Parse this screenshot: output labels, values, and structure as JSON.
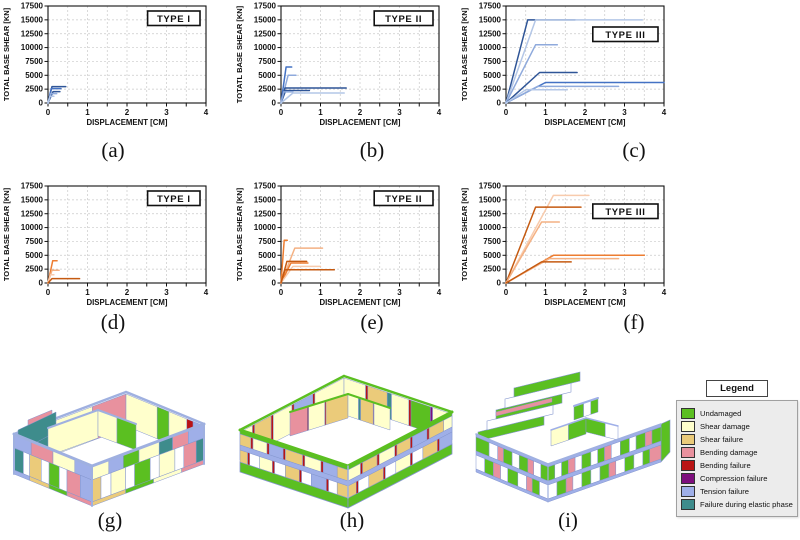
{
  "figure": {
    "captions": {
      "a": "(a)",
      "b": "(b)",
      "c": "(c)",
      "d": "(d)",
      "e": "(e)",
      "f": "(f)",
      "g": "(g)",
      "h": "(h)",
      "i": "(i)"
    }
  },
  "chart_data": [
    {
      "id": "a",
      "type": "line",
      "type_label": "TYPE I",
      "label_dy": 5,
      "xlabel": "DISPLACEMENT [CM]",
      "ylabel": "TOTAL BASE SHEAR [KN]",
      "xlim": [
        0,
        4
      ],
      "ylim": [
        0,
        17500
      ],
      "grid": true,
      "x_grid_step": 0.5,
      "y_grid_step": 2500,
      "xticks": [
        0,
        1,
        2,
        3,
        4
      ],
      "yticks": [
        0,
        2500,
        5000,
        7500,
        10000,
        12500,
        15000,
        17500
      ],
      "series": [
        {
          "color": "#2F5597",
          "points": [
            [
              0,
              0
            ],
            [
              0.1,
              2950
            ],
            [
              0.45,
              2950
            ]
          ]
        },
        {
          "color": "#4472C4",
          "points": [
            [
              0,
              0
            ],
            [
              0.08,
              2600
            ],
            [
              0.33,
              2600
            ]
          ]
        },
        {
          "color": "#2F5597",
          "points": [
            [
              0,
              0
            ],
            [
              0.13,
              2050
            ],
            [
              0.3,
              2050
            ]
          ]
        },
        {
          "color": "#8FAADC",
          "points": [
            [
              0,
              0
            ],
            [
              0.07,
              1700
            ],
            [
              0.22,
              1700
            ]
          ]
        },
        {
          "color": "#B4C7E7",
          "points": [
            [
              0,
              0
            ],
            [
              0.05,
              1200
            ],
            [
              0.15,
              1200
            ]
          ]
        }
      ]
    },
    {
      "id": "b",
      "type": "line",
      "type_label": "TYPE II",
      "label_dy": 5,
      "xlabel": "DISPLACEMENT [CM]",
      "ylabel": "TOTATL BASE SHEAR [KN]",
      "xlim": [
        0,
        4
      ],
      "ylim": [
        0,
        17500
      ],
      "grid": true,
      "x_grid_step": 0.5,
      "y_grid_step": 2500,
      "xticks": [
        0,
        1,
        2,
        3,
        4
      ],
      "yticks": [
        0,
        2500,
        5000,
        7500,
        10000,
        12500,
        15000,
        17500
      ],
      "series": [
        {
          "color": "#4472C4",
          "points": [
            [
              0,
              0
            ],
            [
              0.13,
              6500
            ],
            [
              0.27,
              6500
            ]
          ]
        },
        {
          "color": "#8FAADC",
          "points": [
            [
              0,
              0
            ],
            [
              0.18,
              5000
            ],
            [
              0.38,
              5000
            ]
          ]
        },
        {
          "color": "#2F5597",
          "points": [
            [
              0,
              0
            ],
            [
              0.1,
              2700
            ],
            [
              1.65,
              2700
            ]
          ]
        },
        {
          "color": "#2F5597",
          "points": [
            [
              0,
              0
            ],
            [
              0.12,
              2250
            ],
            [
              0.72,
              2250
            ]
          ]
        },
        {
          "color": "#8FAADC",
          "points": [
            [
              0,
              0
            ],
            [
              0.07,
              2000
            ],
            [
              0.3,
              2000
            ]
          ]
        },
        {
          "color": "#B4C7E7",
          "points": [
            [
              0,
              0
            ],
            [
              0.3,
              1800
            ],
            [
              1.6,
              1800
            ]
          ]
        }
      ]
    },
    {
      "id": "c",
      "type": "line",
      "type_label": "TYPE III",
      "label_dy": 21,
      "xlabel": "DISPLACEMENT [CM]",
      "ylabel": "TOTAL BASE SHEAR [KN]",
      "xlim": [
        0,
        4
      ],
      "ylim": [
        0,
        17500
      ],
      "grid": true,
      "x_grid_step": 0.5,
      "y_grid_step": 2500,
      "xticks": [
        0,
        1,
        2,
        3,
        4
      ],
      "yticks": [
        0,
        2500,
        5000,
        7500,
        10000,
        12500,
        15000,
        17500
      ],
      "series": [
        {
          "color": "#2F5597",
          "points": [
            [
              0,
              0
            ],
            [
              0.55,
              15000
            ],
            [
              1.75,
              15000
            ]
          ]
        },
        {
          "color": "#B4C7E7",
          "points": [
            [
              0,
              0
            ],
            [
              0.75,
              15000
            ],
            [
              3.45,
              15000
            ]
          ]
        },
        {
          "color": "#8FAADC",
          "points": [
            [
              0,
              0
            ],
            [
              0.75,
              10500
            ],
            [
              1.3,
              10500
            ]
          ]
        },
        {
          "color": "#2F5597",
          "points": [
            [
              0,
              0
            ],
            [
              0.85,
              5500
            ],
            [
              1.8,
              5500
            ]
          ]
        },
        {
          "color": "#4472C4",
          "points": [
            [
              0,
              0
            ],
            [
              1.0,
              3700
            ],
            [
              4.0,
              3700
            ]
          ]
        },
        {
          "color": "#8FAADC",
          "points": [
            [
              0,
              0
            ],
            [
              0.8,
              3000
            ],
            [
              2.85,
              3000
            ]
          ]
        },
        {
          "color": "#B4C7E7",
          "points": [
            [
              0,
              0
            ],
            [
              0.5,
              2400
            ],
            [
              1.55,
              2400
            ]
          ]
        }
      ]
    },
    {
      "id": "d",
      "type": "line",
      "type_label": "TYPE I",
      "label_dy": 5,
      "xlabel": "DISPLACEMENT [CM]",
      "ylabel": "TOTAL BASE SHEAR [KN]",
      "xlim": [
        0,
        4
      ],
      "ylim": [
        0,
        17500
      ],
      "grid": true,
      "x_grid_step": 0.5,
      "y_grid_step": 2500,
      "xticks": [
        0,
        1,
        2,
        3,
        4
      ],
      "yticks": [
        0,
        2500,
        5000,
        7500,
        10000,
        12500,
        15000,
        17500
      ],
      "series": [
        {
          "color": "#ED7D31",
          "points": [
            [
              0,
              0
            ],
            [
              0.12,
              4000
            ],
            [
              0.23,
              4000
            ]
          ]
        },
        {
          "color": "#F4B183",
          "points": [
            [
              0,
              0
            ],
            [
              0.1,
              2300
            ],
            [
              0.28,
              2300
            ]
          ]
        },
        {
          "color": "#F8CBAD",
          "points": [
            [
              0,
              0
            ],
            [
              0.06,
              1500
            ],
            [
              0.15,
              1500
            ]
          ]
        },
        {
          "color": "#C55A11",
          "points": [
            [
              0,
              0
            ],
            [
              0.1,
              800
            ],
            [
              0.8,
              800
            ]
          ]
        }
      ]
    },
    {
      "id": "e",
      "type": "line",
      "type_label": "TYPE II",
      "label_dy": 5,
      "xlabel": "DISPLACEMENT [CM]",
      "ylabel": "TOTAL BASE SHEAR [KN]",
      "xlim": [
        0,
        4
      ],
      "ylim": [
        0,
        17500
      ],
      "grid": true,
      "x_grid_step": 0.5,
      "y_grid_step": 2500,
      "xticks": [
        0,
        1,
        2,
        3,
        4
      ],
      "yticks": [
        0,
        2500,
        5000,
        7500,
        10000,
        12500,
        15000,
        17500
      ],
      "series": [
        {
          "color": "#ED7D31",
          "points": [
            [
              0,
              0
            ],
            [
              0.08,
              7700
            ],
            [
              0.16,
              7700
            ]
          ]
        },
        {
          "color": "#F4B183",
          "points": [
            [
              0,
              0
            ],
            [
              0.35,
              6300
            ],
            [
              1.05,
              6300
            ]
          ]
        },
        {
          "color": "#C55A11",
          "points": [
            [
              0,
              0
            ],
            [
              0.15,
              3900
            ],
            [
              0.65,
              3900
            ]
          ]
        },
        {
          "color": "#ED7D31",
          "points": [
            [
              0,
              0
            ],
            [
              0.25,
              3600
            ],
            [
              0.68,
              3600
            ]
          ]
        },
        {
          "color": "#F8CBAD",
          "points": [
            [
              0,
              0
            ],
            [
              0.3,
              3000
            ],
            [
              1.0,
              3000
            ]
          ]
        },
        {
          "color": "#C55A11",
          "points": [
            [
              0,
              0
            ],
            [
              0.1,
              2400
            ],
            [
              1.35,
              2400
            ]
          ]
        }
      ]
    },
    {
      "id": "f",
      "type": "line",
      "type_label": "TYPE III",
      "label_dy": 18,
      "xlabel": "DISPLACEMENT [CM]",
      "ylabel": "TOTAL BASE SHEAR [KN]",
      "xlim": [
        0,
        4
      ],
      "ylim": [
        0,
        17500
      ],
      "grid": true,
      "x_grid_step": 0.5,
      "y_grid_step": 2500,
      "xticks": [
        0,
        1,
        2,
        3,
        4
      ],
      "yticks": [
        0,
        2500,
        5000,
        7500,
        10000,
        12500,
        15000,
        17500
      ],
      "series": [
        {
          "color": "#F8CBAD",
          "points": [
            [
              0,
              0
            ],
            [
              1.2,
              15800
            ],
            [
              2.1,
              15800
            ]
          ]
        },
        {
          "color": "#C55A11",
          "points": [
            [
              0,
              0
            ],
            [
              0.75,
              13700
            ],
            [
              1.9,
              13700
            ]
          ]
        },
        {
          "color": "#F4B183",
          "points": [
            [
              0,
              0
            ],
            [
              0.9,
              11000
            ],
            [
              1.35,
              11000
            ]
          ]
        },
        {
          "color": "#ED7D31",
          "points": [
            [
              0,
              0
            ],
            [
              1.2,
              5000
            ],
            [
              3.5,
              5000
            ]
          ]
        },
        {
          "color": "#F4B183",
          "points": [
            [
              0,
              0
            ],
            [
              1.1,
              4400
            ],
            [
              2.85,
              4400
            ]
          ]
        },
        {
          "color": "#C55A11",
          "points": [
            [
              0,
              0
            ],
            [
              0.9,
              3800
            ],
            [
              1.65,
              3800
            ]
          ]
        }
      ]
    }
  ],
  "legend": {
    "title": "Legend",
    "items": [
      {
        "key": "undamaged",
        "label": "Undamaged",
        "color": "#5BBF21"
      },
      {
        "key": "shear-damage",
        "label": "Shear damage",
        "color": "#FFFFCC"
      },
      {
        "key": "shear-failure",
        "label": "Shear failure",
        "color": "#EBCB7A"
      },
      {
        "key": "bending-damage",
        "label": "Bending damage",
        "color": "#E8919E"
      },
      {
        "key": "bending-failure",
        "label": "Bending failure",
        "color": "#B91414"
      },
      {
        "key": "compression-failure",
        "label": "Compression failure",
        "color": "#7D0E7D"
      },
      {
        "key": "tension-failure",
        "label": "Tension failure",
        "color": "#9FAFE8"
      },
      {
        "key": "elastic-failure",
        "label": "Failure during elastic phase",
        "color": "#3E8C8C"
      }
    ]
  }
}
